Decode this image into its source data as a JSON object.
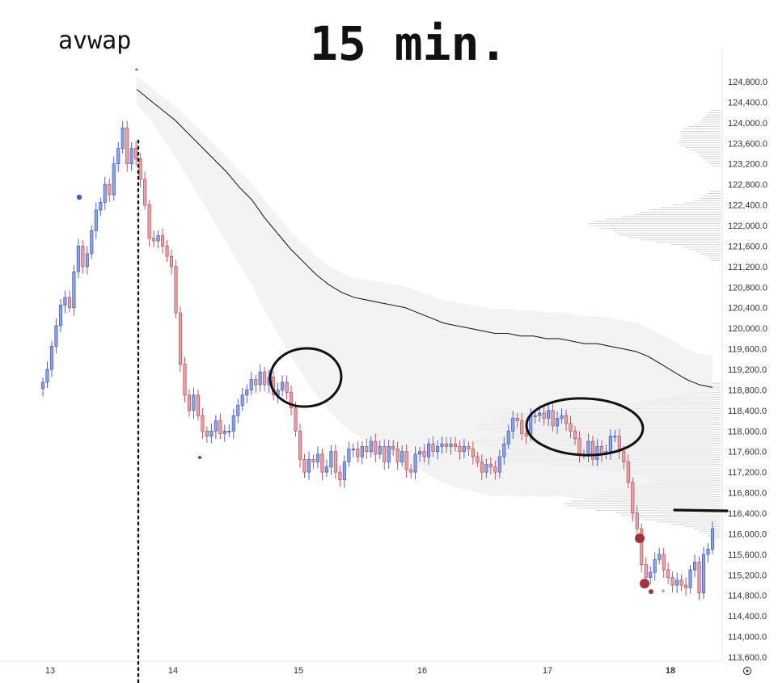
{
  "annotation_title": "15 min.",
  "annotation_label": "avwap",
  "chart_data": {
    "type": "candlestick",
    "title": "15 min.",
    "xlabel": "",
    "ylabel": "",
    "x_ticks": [
      "13",
      "14",
      "15",
      "16",
      "17",
      "18"
    ],
    "y_ticks": [
      "124,800.0",
      "124,400.0",
      "124,000.0",
      "123,600.0",
      "123,200.0",
      "122,800.0",
      "122,400.0",
      "122,000.0",
      "121,600.0",
      "121,200.0",
      "120,800.0",
      "120,400.0",
      "120,000.0",
      "119,600.0",
      "119,200.0",
      "118,800.0",
      "118,400.0",
      "118,000.0",
      "117,600.0",
      "117,200.0",
      "116,800.0",
      "116,400.0",
      "116,000.0",
      "115,600.0",
      "115,200.0",
      "114,800.0",
      "114,400.0",
      "114,000.0",
      "113,600.0"
    ],
    "ylim": [
      113500,
      124950
    ],
    "settings_icon": "target-icon",
    "colors": {
      "up": "#8ea2e8",
      "down": "#e8a3a8",
      "up_edge": "#3a55c4",
      "down_edge": "#b24a55",
      "vwap": "#222222",
      "band": "#efefef",
      "profile": "#c9c9c9"
    },
    "closes": [
      118950,
      119200,
      119650,
      120050,
      120450,
      120600,
      120400,
      121100,
      121600,
      121200,
      121450,
      121900,
      122300,
      122450,
      122800,
      122600,
      123200,
      123500,
      123900,
      123200,
      123500,
      123300,
      122900,
      122400,
      121750,
      121700,
      121800,
      121600,
      121400,
      121200,
      120300,
      119300,
      118700,
      118400,
      118700,
      118300,
      118000,
      117900,
      118000,
      118200,
      117950,
      118000,
      118000,
      118300,
      118500,
      118700,
      118800,
      119000,
      118900,
      119150,
      118900,
      119050,
      118700,
      118800,
      118950,
      118750,
      118450,
      118000,
      117450,
      117200,
      117450,
      117400,
      117550,
      117200,
      117300,
      117600,
      117200,
      117050,
      117400,
      117650,
      117650,
      117500,
      117700,
      117600,
      117800,
      117550,
      117700,
      117400,
      117700,
      117650,
      117400,
      117600,
      117250,
      117200,
      117550,
      117600,
      117500,
      117750,
      117600,
      117700,
      117750,
      117700,
      117750,
      117700,
      117600,
      117700,
      117650,
      117500,
      117400,
      117200,
      117350,
      117300,
      117200,
      117500,
      117750,
      118000,
      118250,
      118200,
      117950,
      117900,
      118300,
      118300,
      118350,
      118250,
      118400,
      118100,
      118250,
      118300,
      118150,
      118000,
      117850,
      117550,
      117550,
      117800,
      117450,
      117700,
      117550,
      117600,
      117900,
      117900,
      117600,
      117400,
      117000,
      116400,
      116100,
      115400,
      115150,
      115250,
      115500,
      115600,
      115300,
      115150,
      115000,
      115100,
      115000,
      114950,
      115300,
      115450,
      114850,
      115600,
      115700,
      116100
    ],
    "vwap": [
      124650,
      124450,
      124250,
      124050,
      123800,
      123550,
      123300,
      123050,
      122750,
      122500,
      122150,
      121850,
      121550,
      121300,
      121050,
      120850,
      120700,
      120600,
      120550,
      120500,
      120450,
      120400,
      120300,
      120200,
      120100,
      120050,
      120000,
      119950,
      119900,
      119900,
      119850,
      119850,
      119800,
      119800,
      119750,
      119700,
      119700,
      119650,
      119600,
      119550,
      119450,
      119300,
      119150,
      119000,
      118900,
      118850
    ],
    "volume_profile_peaks": [
      {
        "price": 118200,
        "level": 0.78
      },
      {
        "price": 117900,
        "level": 0.95
      },
      {
        "price": 117600,
        "level": 1.0
      },
      {
        "price": 116600,
        "level": 0.65
      },
      {
        "price": 122000,
        "level": 0.55
      },
      {
        "price": 123700,
        "level": 0.17
      }
    ]
  }
}
